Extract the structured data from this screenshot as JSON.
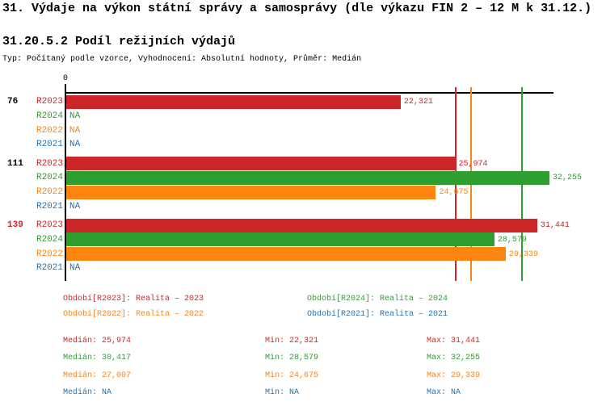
{
  "page": {
    "title": "31. Výdaje na výkon státní správy a samosprávy (dle výkazu FIN 2 – 12 M k 31.12.)",
    "subtitle": "31.20.5.2 Podíl režijních výdajů",
    "type_line": "Typ: Počítaný podle vzorce, Vyhodnocení: Absolutní hodnoty, Průměr: Medián"
  },
  "colors": {
    "r2023": "#cc2629",
    "r2024": "#2f9e30",
    "r2022": "#fd840d",
    "r2021": "#2273b3",
    "text": "#000000",
    "axis": "#000000"
  },
  "chart_data": {
    "type": "bar",
    "orientation": "horizontal",
    "value_axis": {
      "min": 0,
      "max": 32525,
      "tick_labels": [
        "0"
      ]
    },
    "series_order": [
      "R2023",
      "R2024",
      "R2022",
      "R2021"
    ],
    "na_label": "NA",
    "groups": [
      {
        "label": "76",
        "label_color_key": "text",
        "bars": [
          {
            "series": "R2023",
            "value": 22321
          },
          {
            "series": "R2024",
            "value": null
          },
          {
            "series": "R2022",
            "value": null
          },
          {
            "series": "R2021",
            "value": null
          }
        ]
      },
      {
        "label": "111",
        "label_color_key": "text",
        "bars": [
          {
            "series": "R2023",
            "value": 25974
          },
          {
            "series": "R2024",
            "value": 32255
          },
          {
            "series": "R2022",
            "value": 24675
          },
          {
            "series": "R2021",
            "value": null
          }
        ]
      },
      {
        "label": "139",
        "label_color_key": "r2023",
        "bars": [
          {
            "series": "R2023",
            "value": 31441
          },
          {
            "series": "R2024",
            "value": 28579
          },
          {
            "series": "R2022",
            "value": 29339
          },
          {
            "series": "R2021",
            "value": null
          }
        ]
      }
    ],
    "median_lines": [
      {
        "series": "R2023",
        "value": 25974
      },
      {
        "series": "R2022",
        "value": 27007
      },
      {
        "series": "R2024",
        "value": 30417
      }
    ]
  },
  "legend": {
    "items": [
      {
        "series": "R2023",
        "color_key": "r2023",
        "label": "Období[R2023]: Realita – 2023"
      },
      {
        "series": "R2024",
        "color_key": "r2024",
        "label": "Období[R2024]: Realita – 2024"
      },
      {
        "series": "R2022",
        "color_key": "r2022",
        "label": "Období[R2022]: Realita – 2022"
      },
      {
        "series": "R2021",
        "color_key": "r2021",
        "label": "Období[R2021]: Realita – 2021"
      }
    ]
  },
  "stats": {
    "median_label": "Medián:",
    "min_label": "Min:",
    "max_label": "Max:",
    "rows": [
      {
        "color_key": "r2023",
        "median": "25,974",
        "min": "22,321",
        "max": "31,441"
      },
      {
        "color_key": "r2024",
        "median": "30,417",
        "min": "28,579",
        "max": "32,255"
      },
      {
        "color_key": "r2022",
        "median": "27,007",
        "min": "24,675",
        "max": "29,339"
      },
      {
        "color_key": "r2021",
        "median": "NA",
        "min": "NA",
        "max": "NA"
      }
    ]
  }
}
